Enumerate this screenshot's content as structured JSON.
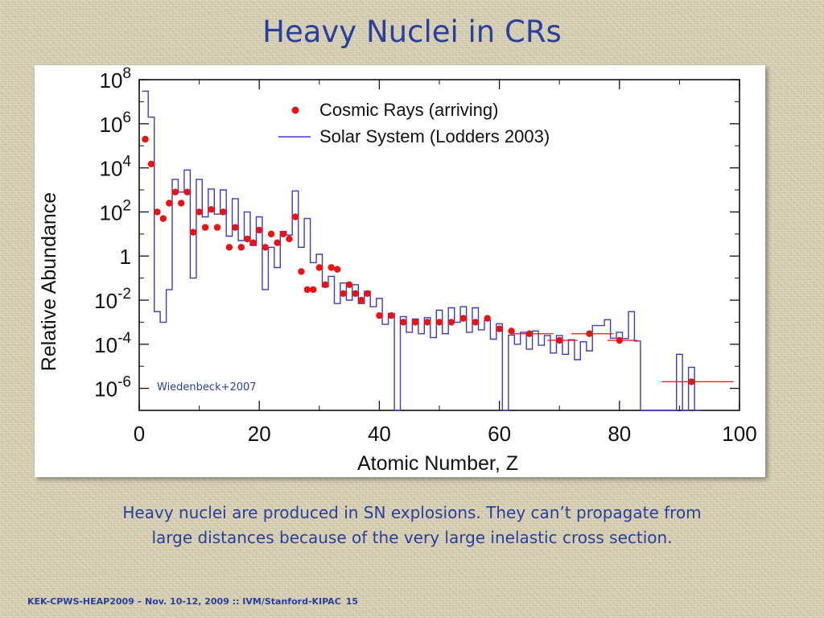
{
  "slide": {
    "title": "Heavy Nuclei in CRs",
    "caption_line1": "Heavy nuclei are produced in SN explosions. They can’t propagate from",
    "caption_line2": "large distances because of the very large inelastic cross section.",
    "footer_text": "KEK-CPWS-HEAP2009 – Nov. 10-12, 2009 :: IVM/Stanford-KIPAC",
    "page_number": "15"
  },
  "chart_data": {
    "type": "scatter",
    "title": "",
    "xlabel": "Atomic Number, Z",
    "ylabel": "Relative Abundance",
    "xlim": [
      0,
      100
    ],
    "ylim": [
      1e-07,
      100000000.0
    ],
    "y_scale": "log",
    "x_ticks": [
      "0",
      "20",
      "40",
      "60",
      "80",
      "100"
    ],
    "y_ticks": [
      {
        "base": "10",
        "exp": "8"
      },
      {
        "base": "10",
        "exp": "6"
      },
      {
        "base": "10",
        "exp": "4"
      },
      {
        "base": "10",
        "exp": "2"
      },
      {
        "base": "1",
        "exp": ""
      },
      {
        "base": "10",
        "exp": "-2"
      },
      {
        "base": "10",
        "exp": "-4"
      },
      {
        "base": "10",
        "exp": "-6"
      }
    ],
    "annotation": "Wiedenbeck+2007",
    "legend_position": "top",
    "colors": {
      "cosmic_rays": "#ee1111",
      "solar_system": "#3b3bc8"
    },
    "series": [
      {
        "name": "Cosmic Rays (arriving)",
        "kind": "points",
        "points": [
          [
            1,
            200000.0
          ],
          [
            2,
            15000.0
          ],
          [
            3,
            100.0
          ],
          [
            4,
            50.0
          ],
          [
            5,
            250.0
          ],
          [
            6,
            800.0
          ],
          [
            7,
            250.0
          ],
          [
            8,
            800.0
          ],
          [
            9,
            12.0
          ],
          [
            10,
            100.0
          ],
          [
            11,
            20.0
          ],
          [
            12,
            130.0
          ],
          [
            13,
            20.0
          ],
          [
            14,
            100.0
          ],
          [
            15,
            2.5
          ],
          [
            16,
            20.0
          ],
          [
            17,
            2.5
          ],
          [
            18,
            6
          ],
          [
            19,
            4
          ],
          [
            20,
            15.0
          ],
          [
            21,
            2.5
          ],
          [
            22,
            10.0
          ],
          [
            23,
            4
          ],
          [
            24,
            10.0
          ],
          [
            25,
            6
          ],
          [
            26,
            60.0
          ],
          [
            27,
            0.2
          ],
          [
            28,
            0.03
          ],
          [
            29,
            0.03
          ],
          [
            30,
            0.3
          ],
          [
            31,
            0.05
          ],
          [
            32,
            0.3
          ],
          [
            33,
            0.25
          ],
          [
            34,
            0.02
          ],
          [
            35,
            0.05
          ],
          [
            36,
            0.02
          ],
          [
            37,
            0.01
          ],
          [
            38,
            0.02
          ],
          [
            40,
            0.002
          ],
          [
            42,
            0.002
          ],
          [
            44,
            0.001
          ],
          [
            46,
            0.001
          ],
          [
            48,
            0.001
          ],
          [
            50,
            0.001
          ],
          [
            52,
            0.001
          ],
          [
            54,
            0.0015
          ],
          [
            56,
            0.001
          ],
          [
            58,
            0.0015
          ],
          [
            60,
            0.0005
          ],
          [
            62,
            0.0004
          ],
          [
            65,
            0.0003
          ],
          [
            70,
            0.00015
          ],
          [
            75,
            0.0003
          ],
          [
            80,
            0.00015
          ],
          [
            92,
            2e-06
          ]
        ],
        "x_error": [
          {
            "z": 65,
            "low": 62,
            "high": 69
          },
          {
            "z": 70,
            "low": 68,
            "high": 73
          },
          {
            "z": 75,
            "low": 72,
            "high": 79
          },
          {
            "z": 80,
            "low": 78,
            "high": 83
          },
          {
            "z": 92,
            "low": 87,
            "high": 99
          }
        ]
      },
      {
        "name": "Solar System (Lodders 2003)",
        "kind": "step",
        "bins": [
          [
            1,
            30000000.0
          ],
          [
            2,
            2000000.0
          ],
          [
            3,
            0.003
          ],
          [
            4,
            0.001
          ],
          [
            5,
            0.03
          ],
          [
            6,
            3000.0
          ],
          [
            7,
            800.0
          ],
          [
            8,
            8000.0
          ],
          [
            9,
            0.1
          ],
          [
            10,
            3000.0
          ],
          [
            11,
            60.0
          ],
          [
            12,
            1100.0
          ],
          [
            13,
            80.0
          ],
          [
            14,
            1000.0
          ],
          [
            15,
            8
          ],
          [
            16,
            400.0
          ],
          [
            17,
            5
          ],
          [
            18,
            100.0
          ],
          [
            19,
            3
          ],
          [
            20,
            60.0
          ],
          [
            21,
            0.03
          ],
          [
            22,
            2.5
          ],
          [
            23,
            0.3
          ],
          [
            24,
            13.0
          ],
          [
            25,
            9
          ],
          [
            26,
            900.0
          ],
          [
            27,
            2.5
          ],
          [
            28,
            50.0
          ],
          [
            29,
            0.5
          ],
          [
            30,
            1.2
          ],
          [
            31,
            0.04
          ],
          [
            32,
            0.12
          ],
          [
            33,
            0.007
          ],
          [
            34,
            0.06
          ],
          [
            35,
            0.01
          ],
          [
            36,
            0.05
          ],
          [
            37,
            0.007
          ],
          [
            38,
            0.025
          ],
          [
            39,
            0.005
          ],
          [
            40,
            0.012
          ],
          [
            41,
            0.0008
          ],
          [
            42,
            0.0025
          ],
          [
            43,
            1e-07
          ],
          [
            44,
            0.0018
          ],
          [
            45,
            0.00035
          ],
          [
            46,
            0.0014
          ],
          [
            47,
            0.0003
          ],
          [
            48,
            0.0016
          ],
          [
            49,
            0.0002
          ],
          [
            50,
            0.0035
          ],
          [
            51,
            0.0003
          ],
          [
            52,
            0.0045
          ],
          [
            53,
            0.001
          ],
          [
            54,
            0.005
          ],
          [
            55,
            0.00035
          ],
          [
            56,
            0.0045
          ],
          [
            57,
            0.00045
          ],
          [
            58,
            0.0012
          ],
          [
            59,
            0.00017
          ],
          [
            60,
            0.00085
          ],
          [
            61,
            1e-07
          ],
          [
            62,
            0.00026
          ],
          [
            63,
            0.0001
          ],
          [
            64,
            0.00035
          ],
          [
            65,
            6e-05
          ],
          [
            66,
            0.0004
          ],
          [
            67,
            9e-05
          ],
          [
            68,
            0.00025
          ],
          [
            69,
            4e-05
          ],
          [
            70,
            0.00025
          ],
          [
            71,
            3.5e-05
          ],
          [
            72,
            0.00016
          ],
          [
            73,
            2e-05
          ],
          [
            74,
            0.00013
          ],
          [
            75,
            5e-05
          ],
          [
            76,
            0.0007
          ],
          [
            77,
            0.0007
          ],
          [
            78,
            0.0013
          ],
          [
            79,
            0.00019
          ],
          [
            80,
            0.00035
          ],
          [
            81,
            0.00018
          ],
          [
            82,
            0.003
          ],
          [
            83,
            0.00014
          ],
          [
            84,
            1e-07
          ],
          [
            85,
            1e-07
          ],
          [
            86,
            1e-07
          ],
          [
            87,
            1e-07
          ],
          [
            88,
            1e-07
          ],
          [
            89,
            1e-07
          ],
          [
            90,
            3.5e-05
          ],
          [
            91,
            1e-07
          ],
          [
            92,
            9e-06
          ],
          [
            93,
            1e-07
          ]
        ]
      }
    ]
  }
}
